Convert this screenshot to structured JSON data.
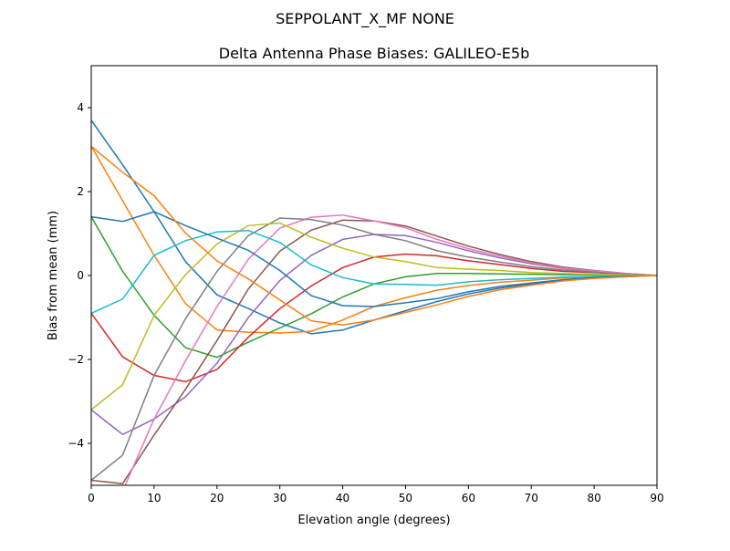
{
  "figure_title": "SEPPOLANT_X_MF  NONE",
  "chart_data": {
    "type": "line",
    "title": "Delta Antenna Phase Biases: GALILEO-E5b",
    "xlabel": "Elevation angle (degrees)",
    "ylabel": "Bias from mean (mm)",
    "xlim": [
      0,
      90
    ],
    "ylim": [
      -5,
      5
    ],
    "xticks": [
      0,
      10,
      20,
      30,
      40,
      50,
      60,
      70,
      80,
      90
    ],
    "yticks": [
      -4,
      -2,
      0,
      2,
      4
    ],
    "ytick_labels": [
      "−4",
      "−2",
      "0",
      "2",
      "4"
    ],
    "grid": false,
    "legend": "none",
    "x": [
      0,
      5,
      10,
      15,
      20,
      25,
      30,
      35,
      40,
      45,
      50,
      55,
      60,
      65,
      70,
      75,
      80,
      85,
      90
    ],
    "colors": [
      "#1f77b4",
      "#ff7f0e",
      "#2ca02c",
      "#d62728",
      "#9467bd",
      "#8c564b",
      "#e377c2",
      "#7f7f7f",
      "#bcbd22",
      "#17becf",
      "#1f77b4",
      "#ff7f0e"
    ],
    "series": [
      {
        "values": [
          3.7,
          2.64,
          1.52,
          0.33,
          -0.46,
          -0.79,
          -1.13,
          -1.39,
          -1.3,
          -1.06,
          -0.84,
          -0.62,
          -0.44,
          -0.3,
          -0.2,
          -0.11,
          -0.06,
          -0.03,
          0
        ]
      },
      {
        "values": [
          3.08,
          1.78,
          0.48,
          -0.67,
          -1.3,
          -1.35,
          -1.37,
          -1.33,
          -1.06,
          -0.74,
          -0.53,
          -0.35,
          -0.24,
          -0.16,
          -0.11,
          -0.06,
          -0.03,
          -0.01,
          0
        ]
      },
      {
        "values": [
          1.4,
          0.1,
          -0.95,
          -1.72,
          -1.95,
          -1.59,
          -1.25,
          -0.91,
          -0.51,
          -0.2,
          -0.03,
          0.05,
          0.05,
          0.04,
          0.03,
          0.02,
          0.02,
          0.01,
          0
        ]
      },
      {
        "values": [
          -0.9,
          -1.94,
          -2.38,
          -2.53,
          -2.24,
          -1.47,
          -0.79,
          -0.25,
          0.19,
          0.44,
          0.51,
          0.47,
          0.35,
          0.26,
          0.17,
          0.1,
          0.07,
          0.03,
          0
        ]
      },
      {
        "values": [
          -3.2,
          -3.79,
          -3.42,
          -2.89,
          -2.09,
          -1.0,
          -0.12,
          0.48,
          0.86,
          0.98,
          0.95,
          0.79,
          0.59,
          0.42,
          0.28,
          0.17,
          0.1,
          0.04,
          0
        ]
      },
      {
        "values": [
          -4.88,
          -4.96,
          -3.8,
          -2.71,
          -1.55,
          -0.32,
          0.58,
          1.08,
          1.32,
          1.3,
          1.18,
          0.94,
          0.7,
          0.5,
          0.33,
          0.2,
          0.12,
          0.05,
          0
        ]
      },
      {
        "values": [
          -5.5,
          -5.14,
          -3.42,
          -2.03,
          -0.74,
          0.39,
          1.13,
          1.39,
          1.44,
          1.3,
          1.14,
          0.86,
          0.64,
          0.46,
          0.3,
          0.18,
          0.11,
          0.05,
          0
        ]
      },
      {
        "values": [
          -4.88,
          -4.28,
          -2.38,
          -1.03,
          0.1,
          0.95,
          1.37,
          1.33,
          1.2,
          0.98,
          0.83,
          0.59,
          0.44,
          0.32,
          0.21,
          0.13,
          0.08,
          0.03,
          0
        ]
      },
      {
        "values": [
          -3.2,
          -2.6,
          -0.95,
          0.02,
          0.75,
          1.19,
          1.25,
          0.91,
          0.65,
          0.44,
          0.33,
          0.19,
          0.15,
          0.12,
          0.07,
          0.05,
          0.03,
          0.01,
          0
        ]
      },
      {
        "values": [
          -0.9,
          -0.56,
          0.48,
          0.83,
          1.04,
          1.07,
          0.79,
          0.25,
          -0.05,
          -0.2,
          -0.21,
          -0.23,
          -0.15,
          -0.1,
          -0.07,
          -0.04,
          -0.02,
          -0.01,
          0
        ]
      },
      {
        "values": [
          1.4,
          1.29,
          1.52,
          1.19,
          0.89,
          0.6,
          0.12,
          -0.48,
          -0.72,
          -0.74,
          -0.65,
          -0.55,
          -0.39,
          -0.26,
          -0.18,
          -0.1,
          -0.05,
          -0.02,
          0
        ]
      },
      {
        "values": [
          3.08,
          2.46,
          1.9,
          1.01,
          0.35,
          -0.08,
          -0.58,
          -1.08,
          -1.18,
          -1.06,
          -0.88,
          -0.7,
          -0.5,
          -0.34,
          -0.23,
          -0.13,
          -0.07,
          -0.03,
          0
        ]
      }
    ]
  }
}
